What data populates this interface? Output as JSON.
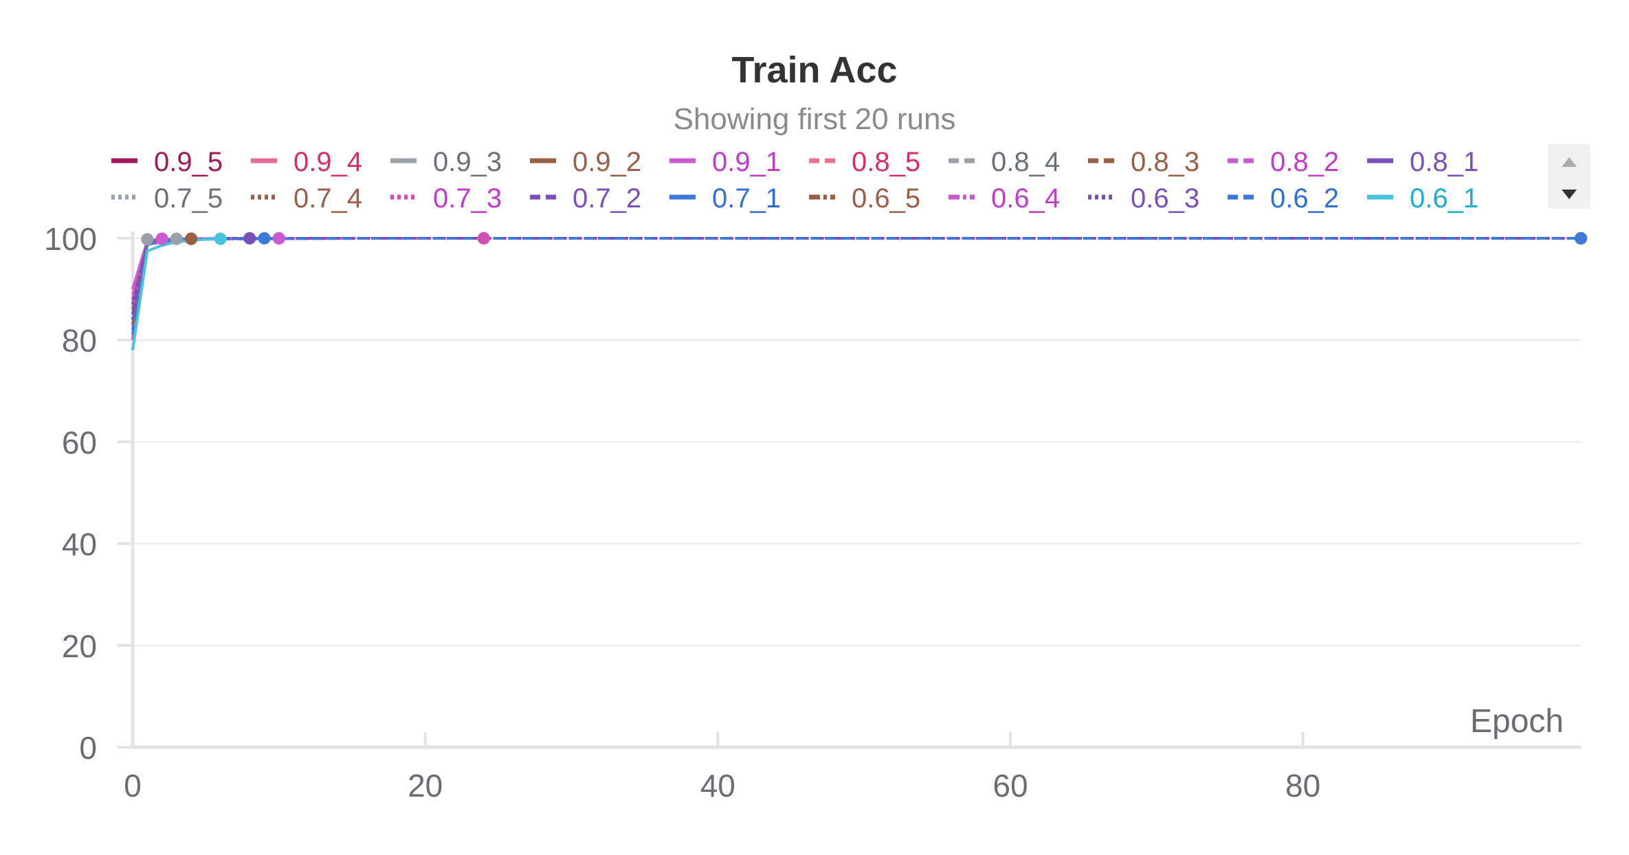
{
  "chart_data": {
    "type": "line",
    "title": "Train Acc",
    "subtitle": "Showing first 20 runs",
    "xlabel": "Epoch",
    "ylabel": "",
    "xlim": [
      0,
      99
    ],
    "ylim": [
      0,
      100
    ],
    "x_ticks": [
      0,
      20,
      40,
      60,
      80
    ],
    "y_ticks": [
      0,
      20,
      40,
      60,
      80,
      100
    ],
    "grid": true,
    "legend_position": "top",
    "series": [
      {
        "name": "0.9_5",
        "color": "#a0185a",
        "dash": "solid",
        "x": [
          0,
          1,
          2
        ],
        "y": [
          88,
          99.3,
          99.9
        ]
      },
      {
        "name": "0.9_4",
        "color": "#e36b98",
        "dash": "solid",
        "x": [
          0,
          1,
          2
        ],
        "y": [
          89,
          99.4,
          99.9
        ]
      },
      {
        "name": "0.9_3",
        "color": "#9aa1a9",
        "dash": "solid",
        "x": [
          0,
          1,
          2,
          3
        ],
        "y": [
          86,
          99.6,
          99.8,
          99.9
        ]
      },
      {
        "name": "0.9_2",
        "color": "#9b5e46",
        "dash": "solid",
        "x": [
          0,
          1,
          2,
          3,
          4
        ],
        "y": [
          87,
          99.2,
          99.6,
          99.8,
          99.9
        ]
      },
      {
        "name": "0.9_1",
        "color": "#c95bd0",
        "dash": "solid",
        "x": [
          0,
          1,
          2
        ],
        "y": [
          90,
          99.5,
          99.9
        ]
      },
      {
        "name": "0.8_5",
        "color": "#e9728f",
        "dash": "dashed",
        "x": [
          0,
          1,
          2,
          4,
          8,
          12,
          16,
          20,
          24
        ],
        "y": [
          85,
          99.4,
          99.7,
          99.9,
          99.9,
          100,
          100,
          100,
          100
        ]
      },
      {
        "name": "0.8_4",
        "color": "#9aa1a9",
        "dash": "dashed",
        "x": [
          0,
          1,
          2,
          3
        ],
        "y": [
          84,
          99.3,
          99.8,
          99.9
        ]
      },
      {
        "name": "0.8_3",
        "color": "#9b5e46",
        "dash": "dashed",
        "x": [
          0,
          1,
          2,
          3,
          4
        ],
        "y": [
          86,
          99.1,
          99.6,
          99.8,
          99.9
        ]
      },
      {
        "name": "0.8_2",
        "color": "#c95bd0",
        "dash": "dashed",
        "x": [
          0,
          1,
          2,
          3,
          4,
          5,
          6,
          7,
          8,
          9,
          10
        ],
        "y": [
          88,
          99.2,
          99.6,
          99.8,
          99.9,
          99.9,
          100,
          100,
          100,
          100,
          100
        ]
      },
      {
        "name": "0.8_1",
        "color": "#7a4fb9",
        "dash": "solid",
        "x": [
          0,
          1,
          2,
          3,
          4,
          5,
          6,
          7,
          8
        ],
        "y": [
          87,
          99.0,
          99.4,
          99.7,
          99.8,
          99.9,
          99.9,
          100,
          100
        ]
      },
      {
        "name": "0.7_5",
        "color": "#9aa1a9",
        "dash": "dotted",
        "x": [
          0,
          1
        ],
        "y": [
          83,
          99.8
        ]
      },
      {
        "name": "0.7_4",
        "color": "#9b5e46",
        "dash": "dotted",
        "x": [
          0,
          1,
          2,
          3,
          4
        ],
        "y": [
          84,
          99.0,
          99.6,
          99.8,
          99.9
        ]
      },
      {
        "name": "0.7_3",
        "color": "#d24fb4",
        "dash": "dotted",
        "x": [
          0,
          1,
          2,
          4,
          8,
          16,
          24
        ],
        "y": [
          86,
          99.3,
          99.7,
          99.9,
          100,
          100,
          100
        ]
      },
      {
        "name": "0.7_2",
        "color": "#7a4fb9",
        "dash": "dashed",
        "x": [
          0,
          1,
          2,
          4,
          8,
          16,
          32,
          48,
          64,
          80,
          99
        ],
        "y": [
          85,
          99.2,
          99.6,
          99.9,
          99.9,
          100,
          100,
          100,
          100,
          100,
          100
        ]
      },
      {
        "name": "0.7_1",
        "color": "#3f78d8",
        "dash": "solid",
        "x": [
          0,
          1,
          2,
          3,
          4,
          5,
          6,
          7,
          8,
          9
        ],
        "y": [
          82,
          98.8,
          99.3,
          99.6,
          99.8,
          99.9,
          99.9,
          100,
          100,
          100
        ]
      },
      {
        "name": "0.6_5",
        "color": "#9b5e46",
        "dash": "dashdot",
        "x": [
          0,
          1,
          2,
          3,
          4
        ],
        "y": [
          83,
          99.0,
          99.5,
          99.7,
          99.9
        ]
      },
      {
        "name": "0.6_4",
        "color": "#c95bd0",
        "dash": "dashdot",
        "x": [
          0,
          1,
          2,
          3,
          4,
          5,
          6,
          7,
          8,
          9,
          10
        ],
        "y": [
          80,
          98.7,
          99.3,
          99.6,
          99.8,
          99.9,
          99.9,
          100,
          100,
          100,
          100
        ]
      },
      {
        "name": "0.6_3",
        "color": "#7a4fb9",
        "dash": "dotted",
        "x": [
          0,
          1,
          2,
          4,
          8,
          16,
          32,
          48,
          64,
          80,
          99
        ],
        "y": [
          84,
          99.1,
          99.6,
          99.9,
          100,
          100,
          100,
          100,
          100,
          100,
          100
        ]
      },
      {
        "name": "0.6_2",
        "color": "#3f78d8",
        "dash": "dashed",
        "x": [
          0,
          1,
          2,
          4,
          8,
          16,
          32,
          48,
          64,
          80,
          99
        ],
        "y": [
          81,
          98.9,
          99.5,
          99.8,
          99.9,
          100,
          100,
          100,
          100,
          100,
          100
        ]
      },
      {
        "name": "0.6_1",
        "color": "#4cc3dd",
        "dash": "solid",
        "x": [
          0,
          1,
          2,
          3,
          4,
          5,
          6
        ],
        "y": [
          78,
          97.5,
          98.6,
          99.3,
          99.6,
          99.8,
          99.9
        ]
      }
    ],
    "legend_text_colors": {
      "0.9_5": "#a0185a",
      "0.9_4": "#d92b6b",
      "0.9_3": "#6b6f76",
      "0.9_2": "#9b5e46",
      "0.9_1": "#c03bc9",
      "0.8_5": "#d92b6b",
      "0.8_4": "#6b6f76",
      "0.8_3": "#9b5e46",
      "0.8_2": "#c03bc9",
      "0.8_1": "#7a4fb9",
      "0.7_5": "#6b6f76",
      "0.7_4": "#9b5e46",
      "0.7_3": "#c03bc9",
      "0.7_2": "#7a4fb9",
      "0.7_1": "#2f6ed6",
      "0.6_5": "#9b5e46",
      "0.6_4": "#c03bc9",
      "0.6_3": "#7a4fb9",
      "0.6_2": "#2f6ed6",
      "0.6_1": "#1aaed0"
    }
  },
  "legend_scroll": {
    "up_icon": "triangle-up-icon",
    "down_icon": "triangle-down-icon"
  }
}
